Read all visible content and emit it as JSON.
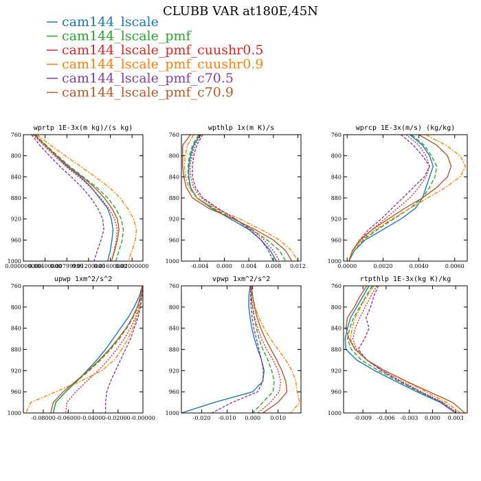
{
  "title": "CLUBB VAR at180E,45N",
  "legend": [
    {
      "name": "cam144_lscale",
      "color": "#1f77b4",
      "dash": "none"
    },
    {
      "name": "cam144_lscale_pmf",
      "color": "#2ca02c",
      "dash": "6,3"
    },
    {
      "name": "cam144_lscale_pmf_cuushr0.5",
      "color": "#d62728",
      "dash": "2,2"
    },
    {
      "name": "cam144_lscale_pmf_cuushr0.9",
      "color": "#ff7f0e",
      "dash": "6,2,2,2"
    },
    {
      "name": "cam144_lscale_pmf_c70.5",
      "color": "#7e3fa0",
      "dash": "4,2"
    },
    {
      "name": "cam144_lscale_pmf_c70.9",
      "color": "#b05a2e",
      "dash": "none"
    }
  ],
  "chart_data": [
    {
      "type": "line",
      "title": "wprtp  1E-3x(m kg)/(s kg)",
      "xlim": [
        0.0,
        0.022
      ],
      "ylim": [
        760,
        1000
      ],
      "xticks": [
        0.0,
        0.004,
        0.008,
        0.012,
        0.016,
        0.02
      ],
      "xtick_labels": [
        "0.000000000",
        "0.00400000",
        "0.00799999",
        "0.01200000",
        "0.01600000",
        "0.02000000"
      ],
      "yticks": [
        760,
        800,
        840,
        880,
        920,
        960,
        1000
      ],
      "levels": [
        760,
        780,
        800,
        820,
        840,
        860,
        880,
        900,
        920,
        940,
        960,
        980,
        1000
      ],
      "series": [
        {
          "name": "cam144_lscale",
          "values": [
            0.002,
            0.004,
            0.006,
            0.008,
            0.0105,
            0.0125,
            0.014,
            0.0155,
            0.0162,
            0.0165,
            0.0163,
            0.016,
            0.0155
          ]
        },
        {
          "name": "cam144_lscale_pmf",
          "values": [
            0.0022,
            0.0042,
            0.0063,
            0.0085,
            0.011,
            0.0135,
            0.0155,
            0.017,
            0.018,
            0.0184,
            0.0182,
            0.0176,
            0.017
          ]
        },
        {
          "name": "cam144_lscale_pmf_cuushr0.5",
          "values": [
            0.0018,
            0.0037,
            0.0057,
            0.0078,
            0.0102,
            0.0124,
            0.0142,
            0.0157,
            0.0168,
            0.0173,
            0.0171,
            0.0167,
            0.0162
          ]
        },
        {
          "name": "cam144_lscale_pmf_cuushr0.9",
          "values": [
            0.0025,
            0.005,
            0.0077,
            0.0105,
            0.0132,
            0.0158,
            0.0178,
            0.0192,
            0.0203,
            0.0208,
            0.0206,
            0.02,
            0.0193
          ]
        },
        {
          "name": "cam144_lscale_pmf_c70.5",
          "values": [
            0.0015,
            0.003,
            0.0048,
            0.0067,
            0.0088,
            0.0108,
            0.0124,
            0.0137,
            0.0146,
            0.0148,
            0.0143,
            0.0136,
            0.013
          ]
        },
        {
          "name": "cam144_lscale_pmf_c70.9",
          "values": [
            0.002,
            0.004,
            0.0061,
            0.0083,
            0.0108,
            0.0131,
            0.0149,
            0.0163,
            0.0173,
            0.0176,
            0.0173,
            0.0168,
            0.0162
          ]
        }
      ]
    },
    {
      "type": "line",
      "title": "wpthlp  1x(m K)/s",
      "xlim": [
        -0.007,
        0.0125
      ],
      "ylim": [
        760,
        1000
      ],
      "xticks": [
        -0.004,
        0.0,
        0.004,
        0.008,
        0.012
      ],
      "xtick_labels": [
        "-0.004",
        "0.000",
        "0.004",
        "0.008",
        "0.012"
      ],
      "yticks": [
        760,
        800,
        840,
        880,
        920,
        960,
        1000
      ],
      "levels": [
        760,
        780,
        800,
        820,
        840,
        860,
        880,
        900,
        920,
        940,
        960,
        980,
        1000
      ],
      "series": [
        {
          "name": "cam144_lscale",
          "values": [
            -0.004,
            -0.005,
            -0.0055,
            -0.0058,
            -0.0058,
            -0.0055,
            -0.0045,
            -0.002,
            0.001,
            0.004,
            0.006,
            0.0075,
            0.0085
          ]
        },
        {
          "name": "cam144_lscale_pmf",
          "values": [
            -0.0042,
            -0.0052,
            -0.0057,
            -0.0059,
            -0.0059,
            -0.0056,
            -0.0044,
            -0.0018,
            0.0015,
            0.0045,
            0.007,
            0.009,
            0.01
          ]
        },
        {
          "name": "cam144_lscale_pmf_cuushr0.5",
          "values": [
            -0.0038,
            -0.0048,
            -0.0053,
            -0.0056,
            -0.0055,
            -0.005,
            -0.0038,
            -0.0012,
            0.0018,
            0.0045,
            0.0065,
            0.008,
            0.009
          ]
        },
        {
          "name": "cam144_lscale_pmf_cuushr0.9",
          "values": [
            -0.005,
            -0.006,
            -0.0064,
            -0.0065,
            -0.0063,
            -0.0058,
            -0.0045,
            -0.0015,
            0.0025,
            0.006,
            0.009,
            0.011,
            0.012
          ]
        },
        {
          "name": "cam144_lscale_pmf_c70.5",
          "values": [
            -0.0035,
            -0.0045,
            -0.005,
            -0.0052,
            -0.0052,
            -0.0047,
            -0.0035,
            -0.001,
            0.0018,
            0.0042,
            0.006,
            0.0072,
            0.008
          ]
        },
        {
          "name": "cam144_lscale_pmf_c70.9",
          "values": [
            -0.0055,
            -0.0068,
            -0.0068,
            -0.0068,
            -0.0066,
            -0.0062,
            -0.0052,
            -0.0025,
            0.0015,
            0.005,
            0.008,
            0.01,
            0.011
          ]
        }
      ]
    },
    {
      "type": "line",
      "title": "wprcp  1E-3x(m/s) (kg/kg)",
      "xlim": [
        -0.0002,
        0.0067
      ],
      "ylim": [
        760,
        1000
      ],
      "xticks": [
        0.0,
        0.002,
        0.004,
        0.006
      ],
      "xtick_labels": [
        "0.0000",
        "0.0020",
        "0.0040",
        "0.0060"
      ],
      "yticks": [
        760,
        800,
        840,
        880,
        920,
        960,
        1000
      ],
      "levels": [
        760,
        780,
        800,
        820,
        840,
        860,
        880,
        900,
        920,
        940,
        960,
        980,
        1000
      ],
      "series": [
        {
          "name": "cam144_lscale",
          "values": [
            0.0035,
            0.0042,
            0.0046,
            0.0048,
            0.0046,
            0.0044,
            0.0042,
            0.0038,
            0.003,
            0.002,
            0.001,
            0.0004,
            0.0001
          ]
        },
        {
          "name": "cam144_lscale_pmf",
          "values": [
            0.0036,
            0.0043,
            0.0047,
            0.005,
            0.0049,
            0.0046,
            0.0042,
            0.0035,
            0.0026,
            0.0017,
            0.0009,
            0.0004,
            0.0001
          ]
        },
        {
          "name": "cam144_lscale_pmf_cuushr0.5",
          "values": [
            0.0033,
            0.004,
            0.0044,
            0.0046,
            0.0044,
            0.004,
            0.0035,
            0.0028,
            0.0021,
            0.0014,
            0.0008,
            0.0003,
            0.0001
          ]
        },
        {
          "name": "cam144_lscale_pmf_cuushr0.9",
          "values": [
            0.0044,
            0.0055,
            0.0063,
            0.0066,
            0.0063,
            0.0055,
            0.0045,
            0.0035,
            0.0025,
            0.0016,
            0.0008,
            0.0003,
            0.0001
          ]
        },
        {
          "name": "cam144_lscale_pmf_c70.5",
          "values": [
            0.003,
            0.0037,
            0.0042,
            0.0046,
            0.0043,
            0.0037,
            0.0031,
            0.0025,
            0.0019,
            0.0012,
            0.0007,
            0.0003,
            0.0001
          ]
        },
        {
          "name": "cam144_lscale_pmf_c70.9",
          "values": [
            0.004,
            0.005,
            0.0056,
            0.0058,
            0.0056,
            0.005,
            0.0042,
            0.0032,
            0.0023,
            0.0014,
            0.0007,
            0.0003,
            0.0001
          ]
        }
      ]
    },
    {
      "type": "line",
      "title": "upwp  1xm^2/s^2",
      "xlim": [
        -0.096,
        0.0
      ],
      "ylim": [
        760,
        1000
      ],
      "xticks": [
        -0.08,
        -0.06,
        -0.04,
        -0.02,
        0.0
      ],
      "xtick_labels": [
        "-0.08000",
        "-0.06000",
        "-0.04000",
        "-0.02000",
        "-0.00000"
      ],
      "yticks": [
        760,
        800,
        840,
        880,
        920,
        960,
        1000
      ],
      "levels": [
        760,
        780,
        800,
        820,
        840,
        860,
        880,
        900,
        920,
        940,
        960,
        980,
        1000
      ],
      "series": [
        {
          "name": "cam144_lscale",
          "values": [
            -0.0005,
            -0.003,
            -0.007,
            -0.012,
            -0.018,
            -0.024,
            -0.03,
            -0.037,
            -0.045,
            -0.053,
            -0.062,
            -0.07,
            -0.072
          ]
        },
        {
          "name": "cam144_lscale_pmf",
          "values": [
            -0.0003,
            -0.0015,
            -0.004,
            -0.008,
            -0.013,
            -0.019,
            -0.026,
            -0.034,
            -0.043,
            -0.053,
            -0.062,
            -0.07,
            -0.072
          ]
        },
        {
          "name": "cam144_lscale_pmf_cuushr0.5",
          "values": [
            -0.0003,
            -0.001,
            -0.003,
            -0.006,
            -0.01,
            -0.015,
            -0.021,
            -0.028,
            -0.036,
            -0.045,
            -0.054,
            -0.061,
            -0.062
          ]
        },
        {
          "name": "cam144_lscale_pmf_cuushr0.9",
          "values": [
            -0.0002,
            -0.001,
            -0.0025,
            -0.005,
            -0.008,
            -0.012,
            -0.017,
            -0.023,
            -0.033,
            -0.05,
            -0.07,
            -0.09,
            -0.094
          ]
        },
        {
          "name": "cam144_lscale_pmf_c70.5",
          "values": [
            -0.0002,
            -0.0008,
            -0.002,
            -0.004,
            -0.007,
            -0.01,
            -0.014,
            -0.018,
            -0.022,
            -0.026,
            -0.029,
            -0.03,
            -0.03
          ]
        },
        {
          "name": "cam144_lscale_pmf_c70.9",
          "values": [
            -0.0005,
            -0.002,
            -0.0045,
            -0.0085,
            -0.0135,
            -0.02,
            -0.027,
            -0.035,
            -0.044,
            -0.054,
            -0.064,
            -0.072,
            -0.074
          ]
        }
      ]
    },
    {
      "type": "line",
      "title": "vpwp  1xm^2/s^2",
      "xlim": [
        -0.028,
        0.019
      ],
      "ylim": [
        760,
        1000
      ],
      "xticks": [
        -0.02,
        -0.01,
        0.0,
        0.01
      ],
      "xtick_labels": [
        "-0.020",
        "-0.010",
        "0.000",
        "0.010"
      ],
      "yticks": [
        760,
        800,
        840,
        880,
        920,
        960,
        1000
      ],
      "levels": [
        760,
        780,
        800,
        820,
        840,
        860,
        880,
        900,
        920,
        940,
        960,
        980,
        1000
      ],
      "series": [
        {
          "name": "cam144_lscale",
          "values": [
            -0.001,
            -0.0015,
            -0.0015,
            -0.001,
            -0.0003,
            0.0007,
            0.002,
            0.0035,
            0.0045,
            0.004,
            0.0,
            -0.015,
            -0.028
          ]
        },
        {
          "name": "cam144_lscale_pmf",
          "values": [
            -0.0005,
            -0.0005,
            0.0,
            0.0006,
            0.0015,
            0.0025,
            0.004,
            0.006,
            0.0075,
            0.0085,
            0.008,
            0.004,
            0.0
          ]
        },
        {
          "name": "cam144_lscale_pmf_cuushr0.5",
          "values": [
            -0.0008,
            -0.0006,
            0.0,
            0.0008,
            0.002,
            0.0035,
            0.0055,
            0.008,
            0.01,
            0.011,
            0.0105,
            0.007,
            0.002
          ]
        },
        {
          "name": "cam144_lscale_pmf_cuushr0.9",
          "values": [
            -0.0005,
            0.0,
            0.001,
            0.0025,
            0.0045,
            0.007,
            0.01,
            0.013,
            0.0155,
            0.017,
            0.0175,
            0.0185,
            0.015
          ]
        },
        {
          "name": "cam144_lscale_pmf_c70.5",
          "values": [
            -0.0008,
            -0.0008,
            -0.0006,
            -0.0002,
            0.0005,
            0.0015,
            0.0025,
            0.0035,
            0.0042,
            0.004,
            0.002,
            -0.008,
            -0.016
          ]
        },
        {
          "name": "cam144_lscale_pmf_c70.9",
          "values": [
            -0.0005,
            0.0,
            0.0007,
            0.0018,
            0.0032,
            0.005,
            0.0072,
            0.0095,
            0.0115,
            0.013,
            0.0135,
            0.01,
            0.004
          ]
        }
      ]
    },
    {
      "type": "line",
      "title": "rtpthlp  1E-3x(kg K)/kg",
      "xlim": [
        -0.0115,
        0.0045
      ],
      "ylim": [
        760,
        1000
      ],
      "xticks": [
        -0.009,
        -0.006,
        -0.003,
        0.0,
        0.003
      ],
      "xtick_labels": [
        "-0.009",
        "-0.006",
        "-0.003",
        "0.000",
        "0.003"
      ],
      "yticks": [
        760,
        800,
        840,
        880,
        920,
        960,
        1000
      ],
      "levels": [
        760,
        780,
        800,
        820,
        840,
        860,
        880,
        900,
        920,
        940,
        960,
        980,
        1000
      ],
      "series": [
        {
          "name": "cam144_lscale",
          "values": [
            -0.0082,
            -0.009,
            -0.0098,
            -0.0106,
            -0.011,
            -0.0113,
            -0.0112,
            -0.0098,
            -0.0075,
            -0.0048,
            -0.002,
            0.001,
            0.003
          ]
        },
        {
          "name": "cam144_lscale_pmf",
          "values": [
            -0.0078,
            -0.0086,
            -0.0094,
            -0.0102,
            -0.0107,
            -0.011,
            -0.0105,
            -0.0092,
            -0.007,
            -0.0044,
            -0.0017,
            0.0012,
            0.003
          ]
        },
        {
          "name": "cam144_lscale_pmf_cuushr0.5",
          "values": [
            -0.0072,
            -0.008,
            -0.0087,
            -0.0094,
            -0.01,
            -0.0103,
            -0.0098,
            -0.0085,
            -0.0065,
            -0.004,
            -0.0014,
            0.0014,
            0.0032
          ]
        },
        {
          "name": "cam144_lscale_pmf_cuushr0.9",
          "values": [
            -0.0076,
            -0.0085,
            -0.0093,
            -0.01,
            -0.0104,
            -0.0106,
            -0.01,
            -0.0085,
            -0.0062,
            -0.0035,
            -0.0008,
            0.0018,
            0.0036
          ]
        },
        {
          "name": "cam144_lscale_pmf_c70.5",
          "values": [
            -0.007,
            -0.0076,
            -0.008,
            -0.0086,
            -0.0082,
            -0.0088,
            -0.0096,
            -0.0085,
            -0.0066,
            -0.0042,
            -0.0016,
            0.0012,
            0.003
          ]
        },
        {
          "name": "cam144_lscale_pmf_c70.9",
          "values": [
            -0.0085,
            -0.0094,
            -0.0101,
            -0.011,
            -0.0112,
            -0.0108,
            -0.01,
            -0.0085,
            -0.0062,
            -0.0034,
            -0.0004,
            0.0026,
            0.0042
          ]
        }
      ]
    }
  ]
}
